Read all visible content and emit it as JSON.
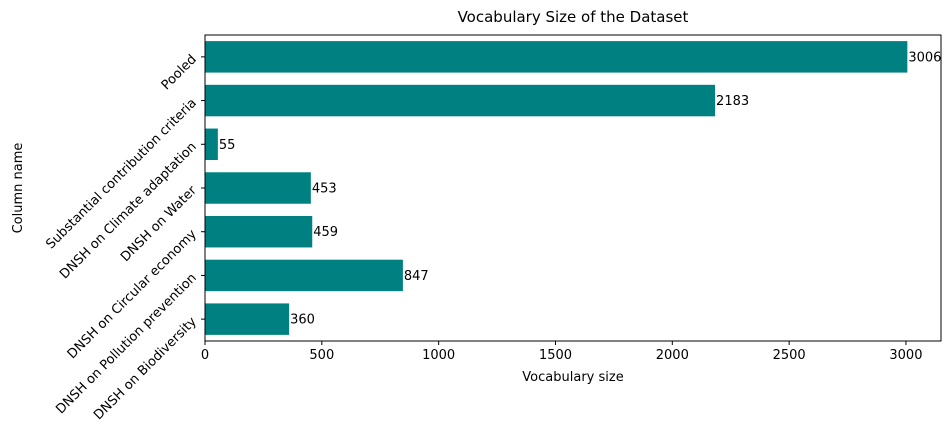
{
  "chart_data": {
    "type": "bar",
    "orientation": "horizontal",
    "title": "Vocabulary Size of the Dataset",
    "xlabel": "Vocabulary size",
    "ylabel": "Column name",
    "categories": [
      "Pooled",
      "Substantial contribution criteria",
      "DNSH on Climate adaptation",
      "DNSH on Water",
      "DNSH on Circular economy",
      "DNSH on Pollution prevention",
      "DNSH on Biodiversity"
    ],
    "values": [
      3006,
      2183,
      55,
      453,
      459,
      847,
      360
    ],
    "data_labels": [
      "3006",
      "2183",
      "55",
      "453",
      "459",
      "847",
      "360"
    ],
    "xlim": [
      0,
      3150
    ],
    "xticks": [
      0,
      500,
      1000,
      1500,
      2000,
      2500,
      3000
    ],
    "xtick_labels": [
      "0",
      "500",
      "1000",
      "1500",
      "2000",
      "2500",
      "3000"
    ],
    "bar_color": "#008080",
    "grid": false,
    "legend": "none"
  }
}
